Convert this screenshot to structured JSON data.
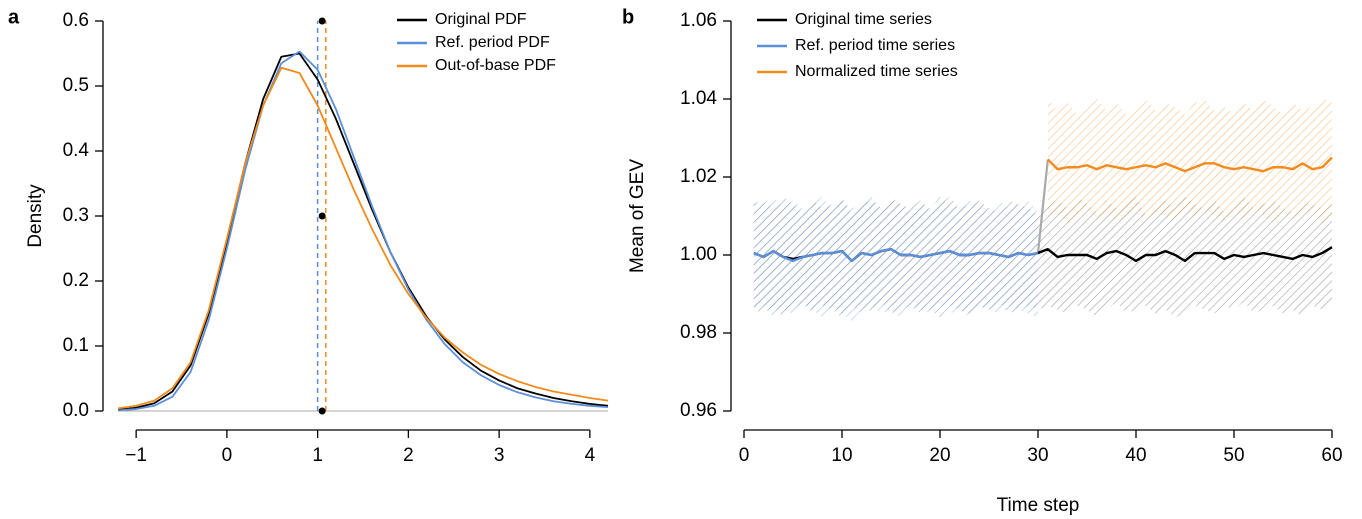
{
  "chart_data": [
    {
      "type": "line",
      "label": "a",
      "ylabel": "Density",
      "xlim": [
        -1.2,
        4.2
      ],
      "ylim": [
        0,
        0.6
      ],
      "xticks": [
        {
          "value": -1,
          "label": "−1"
        },
        0,
        1,
        2,
        3,
        4
      ],
      "yticks": [
        {
          "value": 0,
          "label": "0.0"
        },
        0.1,
        0.2,
        0.3,
        0.4,
        0.5,
        0.6
      ],
      "zero_line": true,
      "zero_line_color": "#aaaaaa",
      "x": [
        -1.2,
        -1,
        -0.8,
        -0.6,
        -0.4,
        -0.2,
        0,
        0.2,
        0.4,
        0.6,
        0.8,
        1,
        1.2,
        1.4,
        1.6,
        1.8,
        2,
        2.2,
        2.4,
        2.6,
        2.8,
        3,
        3.2,
        3.4,
        3.6,
        3.8,
        4,
        4.2
      ],
      "series": [
        {
          "name": "Original PDF",
          "color": "#000000",
          "values": [
            0.002,
            0.005,
            0.012,
            0.03,
            0.07,
            0.15,
            0.26,
            0.38,
            0.48,
            0.545,
            0.55,
            0.51,
            0.45,
            0.38,
            0.31,
            0.245,
            0.19,
            0.145,
            0.11,
            0.083,
            0.062,
            0.047,
            0.035,
            0.027,
            0.02,
            0.015,
            0.011,
            0.008
          ]
        },
        {
          "name": "Ref. period PDF",
          "color": "#5b8fd9",
          "values": [
            0.001,
            0.003,
            0.008,
            0.022,
            0.06,
            0.14,
            0.25,
            0.37,
            0.47,
            0.535,
            0.553,
            0.525,
            0.465,
            0.39,
            0.315,
            0.245,
            0.187,
            0.14,
            0.103,
            0.075,
            0.055,
            0.04,
            0.029,
            0.021,
            0.015,
            0.011,
            0.008,
            0.006
          ]
        },
        {
          "name": "Out-of-base PDF",
          "color": "#f28a1c",
          "values": [
            0.004,
            0.008,
            0.016,
            0.035,
            0.075,
            0.155,
            0.265,
            0.38,
            0.47,
            0.528,
            0.52,
            0.47,
            0.405,
            0.34,
            0.28,
            0.225,
            0.18,
            0.143,
            0.113,
            0.09,
            0.071,
            0.057,
            0.046,
            0.037,
            0.03,
            0.025,
            0.02,
            0.016
          ]
        }
      ],
      "vlines": [
        {
          "x": 1.0,
          "color": "#5b8fd9"
        },
        {
          "x": 1.09,
          "color": "#f28a1c"
        }
      ],
      "markers": {
        "x": 1.05,
        "y": [
          0,
          0.3,
          0.6
        ],
        "color": "#000000"
      }
    },
    {
      "type": "band-line",
      "label": "b",
      "xlabel": "Time step",
      "ylabel": "Mean of GEV",
      "xlim": [
        0,
        60
      ],
      "ylim": [
        0.96,
        1.06
      ],
      "xticks": [
        0,
        10,
        20,
        30,
        40,
        50,
        60
      ],
      "yticks": [
        0.96,
        0.98,
        {
          "value": 1,
          "label": "1.00"
        },
        1.02,
        1.04,
        1.06
      ],
      "connector_color": "#aaaaaa",
      "series": [
        {
          "name": "Original time series",
          "color": "#000000",
          "band_color": "#555555",
          "x": [
            1,
            2,
            3,
            4,
            5,
            6,
            7,
            8,
            9,
            10,
            11,
            12,
            13,
            14,
            15,
            16,
            17,
            18,
            19,
            20,
            21,
            22,
            23,
            24,
            25,
            26,
            27,
            28,
            29,
            30,
            31,
            32,
            33,
            34,
            35,
            36,
            37,
            38,
            39,
            40,
            41,
            42,
            43,
            44,
            45,
            46,
            47,
            48,
            49,
            50,
            51,
            52,
            53,
            54,
            55,
            56,
            57,
            58,
            59,
            60
          ],
          "values": [
            1.0005,
            0.9995,
            1.001,
            0.9995,
            0.999,
            0.9995,
            1.0,
            1.0005,
            1.0005,
            1.001,
            0.9985,
            1.0005,
            1.0,
            1.001,
            1.0015,
            1.0,
            1.0,
            0.9995,
            1.0,
            1.0005,
            1.001,
            1.0,
            1.0,
            1.0005,
            1.0005,
            1.0,
            0.9995,
            1.0005,
            1.0,
            1.0005,
            1.0015,
            0.9995,
            1.0,
            1.0,
            1.0,
            0.999,
            1.0005,
            1.001,
            1.0,
            0.9985,
            1.0,
            1.0,
            1.001,
            1.0,
            0.9985,
            1.0005,
            1.0005,
            1.0005,
            0.999,
            1.0,
            0.9995,
            1.0,
            1.0005,
            1.0,
            0.9995,
            0.999,
            1.0,
            0.9995,
            1.0005,
            1.002
          ],
          "upper": [
            1.013,
            1.014,
            1.012,
            1.015,
            1.013,
            1.011,
            1.014,
            1.012,
            1.013,
            1.015,
            1.01,
            1.013,
            1.014,
            1.012,
            1.015,
            1.013,
            1.012,
            1.014,
            1.011,
            1.013,
            1.015,
            1.012,
            1.013,
            1.014,
            1.012,
            1.011,
            1.014,
            1.013,
            1.012,
            1.01,
            1.013,
            1.014,
            1.012,
            1.015,
            1.013,
            1.011,
            1.014,
            1.012,
            1.013,
            1.015,
            1.01,
            1.013,
            1.014,
            1.012,
            1.015,
            1.013,
            1.012,
            1.014,
            1.011,
            1.013,
            1.015,
            1.012,
            1.013,
            1.014,
            1.012,
            1.011,
            1.014,
            1.013,
            1.012,
            1.015
          ],
          "lower": [
            0.986,
            0.985,
            0.987,
            0.984,
            0.986,
            0.988,
            0.985,
            0.987,
            0.986,
            0.984,
            0.987,
            0.985,
            0.986,
            0.988,
            0.985,
            0.986,
            0.987,
            0.985,
            0.986,
            0.984,
            0.987,
            0.986,
            0.985,
            0.987,
            0.986,
            0.988,
            0.985,
            0.986,
            0.987,
            0.986,
            0.987,
            0.986,
            0.985,
            0.987,
            0.986,
            0.984,
            0.986,
            0.988,
            0.985,
            0.986,
            0.987,
            0.985,
            0.986,
            0.984,
            0.985,
            0.987,
            0.986,
            0.985,
            0.987,
            0.986,
            0.988,
            0.985,
            0.986,
            0.987,
            0.985,
            0.986,
            0.984,
            0.987,
            0.986,
            0.988
          ]
        },
        {
          "name": "Ref. period time series",
          "color": "#5b8fd9",
          "band_color": "#5b8fd9",
          "x": [
            1,
            2,
            3,
            4,
            5,
            6,
            7,
            8,
            9,
            10,
            11,
            12,
            13,
            14,
            15,
            16,
            17,
            18,
            19,
            20,
            21,
            22,
            23,
            24,
            25,
            26,
            27,
            28,
            29,
            30
          ],
          "values": [
            1.0005,
            0.9995,
            1.001,
            0.9995,
            0.9985,
            0.9995,
            1.0,
            1.0005,
            1.0005,
            1.001,
            0.9985,
            1.0005,
            1.0,
            1.001,
            1.0015,
            1.0,
            1.0,
            0.9995,
            1.0,
            1.0005,
            1.001,
            1.0,
            1.0,
            1.0005,
            1.0005,
            1.0,
            0.9995,
            1.0005,
            1.0,
            1.0005
          ],
          "upper": [
            1.014,
            1.013,
            1.015,
            1.012,
            1.014,
            1.012,
            1.013,
            1.015,
            1.011,
            1.014,
            1.012,
            1.013,
            1.015,
            1.012,
            1.014,
            1.013,
            1.011,
            1.014,
            1.012,
            1.015,
            1.013,
            1.012,
            1.014,
            1.013,
            1.011,
            1.014,
            1.012,
            1.013,
            1.014,
            1.011
          ],
          "lower": [
            0.985,
            0.987,
            0.984,
            0.986,
            0.985,
            0.987,
            0.986,
            0.984,
            0.987,
            0.985,
            0.983,
            0.986,
            0.987,
            0.985,
            0.986,
            0.984,
            0.987,
            0.986,
            0.985,
            0.987,
            0.985,
            0.986,
            0.984,
            0.987,
            0.986,
            0.985,
            0.987,
            0.986,
            0.985,
            0.984
          ]
        },
        {
          "name": "Normalized time series",
          "color": "#f28a1c",
          "band_color": "#f28a1c",
          "x": [
            31,
            32,
            33,
            34,
            35,
            36,
            37,
            38,
            39,
            40,
            41,
            42,
            43,
            44,
            45,
            46,
            47,
            48,
            49,
            50,
            51,
            52,
            53,
            54,
            55,
            56,
            57,
            58,
            59,
            60
          ],
          "values": [
            1.0245,
            1.022,
            1.0225,
            1.0225,
            1.023,
            1.022,
            1.023,
            1.0225,
            1.022,
            1.0225,
            1.023,
            1.0225,
            1.0235,
            1.0225,
            1.0215,
            1.0225,
            1.0235,
            1.0235,
            1.0225,
            1.022,
            1.0225,
            1.022,
            1.0215,
            1.0225,
            1.0225,
            1.022,
            1.0235,
            1.022,
            1.0225,
            1.025
          ],
          "upper": [
            1.04,
            1.037,
            1.039,
            1.036,
            1.038,
            1.04,
            1.037,
            1.039,
            1.036,
            1.038,
            1.04,
            1.037,
            1.039,
            1.038,
            1.036,
            1.039,
            1.04,
            1.037,
            1.038,
            1.036,
            1.039,
            1.037,
            1.04,
            1.038,
            1.036,
            1.039,
            1.037,
            1.038,
            1.04,
            1.039
          ],
          "lower": [
            1.009,
            1.011,
            1.008,
            1.01,
            1.012,
            1.009,
            1.011,
            1.008,
            1.01,
            1.012,
            1.009,
            1.011,
            1.01,
            1.008,
            1.012,
            1.009,
            1.011,
            1.01,
            1.008,
            1.011,
            1.009,
            1.012,
            1.01,
            1.008,
            1.011,
            1.009,
            1.01,
            1.012,
            1.008,
            1.01
          ]
        }
      ]
    }
  ]
}
